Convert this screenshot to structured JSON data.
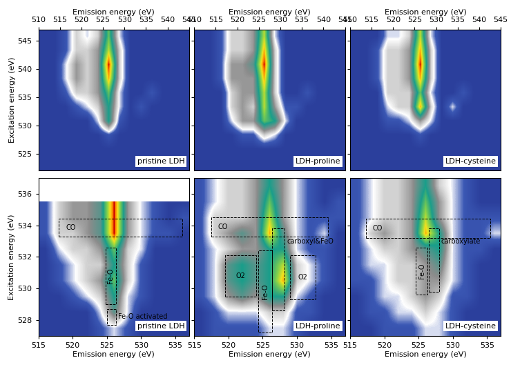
{
  "chart_data": [
    {
      "type": "heatmap",
      "title": "pristine LDH",
      "x_label": "Emission energy (eV)",
      "y_label": "Excitation energy (eV)",
      "xlim": [
        510,
        545
      ],
      "ylim": [
        522,
        547
      ],
      "xticks": [
        510,
        515,
        520,
        525,
        530,
        535,
        540,
        545
      ],
      "yticks": [
        525,
        530,
        535,
        540,
        545
      ],
      "clim": [
        0,
        10
      ],
      "cells": [
        [
          0,
          0,
          0,
          0,
          0,
          0,
          0,
          0,
          0,
          0,
          0,
          0,
          0,
          0
        ],
        [
          0,
          0,
          0,
          0,
          0,
          0,
          0,
          0,
          0,
          0,
          0,
          0,
          0,
          0
        ],
        [
          0,
          0,
          0,
          0,
          0,
          0,
          1,
          0,
          0,
          0,
          0,
          0,
          0,
          0
        ],
        [
          0,
          0,
          0,
          0,
          0,
          2,
          6,
          1,
          0,
          0,
          0,
          0,
          0,
          0
        ],
        [
          0,
          0,
          0,
          1,
          2,
          3,
          6,
          2,
          0,
          1,
          0,
          0,
          0,
          0
        ],
        [
          0,
          0,
          1,
          3,
          3,
          4,
          7,
          2,
          0,
          0,
          1,
          0,
          0,
          0
        ],
        [
          0,
          0,
          2,
          4,
          3,
          4,
          9,
          3,
          0,
          0,
          0,
          0,
          0,
          0
        ],
        [
          0,
          0,
          2,
          4,
          3,
          4,
          10,
          3,
          0,
          0,
          0,
          0,
          0,
          0
        ],
        [
          0,
          0,
          1,
          3,
          3,
          4,
          8,
          3,
          0,
          0,
          0,
          0,
          0,
          0
        ],
        [
          0,
          0,
          1,
          3,
          2,
          3,
          7,
          2,
          0,
          0,
          0,
          0,
          0,
          0
        ]
      ],
      "regions": []
    },
    {
      "type": "heatmap",
      "title": "LDH-proline",
      "x_label": "Emission energy (eV)",
      "xlim": [
        510,
        545
      ],
      "ylim": [
        522,
        547
      ],
      "xticks": [
        510,
        515,
        520,
        525,
        530,
        535,
        540,
        545
      ],
      "yticks": [
        525,
        530,
        535,
        540,
        545
      ],
      "tick_labels": "x",
      "clim": [
        0,
        10
      ],
      "cells": [
        [
          0,
          0,
          0,
          0,
          0,
          0,
          0,
          0,
          0,
          0,
          0,
          0,
          0,
          0
        ],
        [
          0,
          0,
          0,
          0,
          0,
          0,
          0,
          0,
          0,
          0,
          0,
          0,
          0,
          0
        ],
        [
          0,
          0,
          0,
          0,
          1,
          1,
          3,
          2,
          0,
          0,
          0,
          0,
          0,
          0
        ],
        [
          0,
          0,
          0,
          2,
          4,
          4,
          7,
          6,
          2,
          0,
          0,
          0,
          0,
          0
        ],
        [
          0,
          0,
          0,
          3,
          4,
          3,
          8,
          4,
          1,
          1,
          0,
          0,
          0,
          0
        ],
        [
          0,
          0,
          0,
          3,
          4,
          4,
          8,
          3,
          0,
          0,
          1,
          0,
          0,
          0
        ],
        [
          0,
          0,
          1,
          4,
          4,
          4,
          9,
          3,
          0,
          0,
          0,
          0,
          0,
          0
        ],
        [
          0,
          0,
          1,
          4,
          4,
          5,
          10,
          3,
          0,
          0,
          0,
          0,
          0,
          0
        ],
        [
          0,
          0,
          1,
          3,
          3,
          4,
          9,
          3,
          0,
          0,
          0,
          0,
          0,
          0
        ],
        [
          0,
          0,
          1,
          3,
          3,
          4,
          8,
          2,
          0,
          0,
          0,
          0,
          0,
          0
        ]
      ],
      "regions": []
    },
    {
      "type": "heatmap",
      "title": "LDH-cysteine",
      "x_label": "Emission energy (eV)",
      "xlim": [
        510,
        545
      ],
      "ylim": [
        522,
        547
      ],
      "xticks": [
        510,
        515,
        520,
        525,
        530,
        535,
        540,
        545
      ],
      "yticks": [
        525,
        530,
        535,
        540,
        545
      ],
      "tick_labels": "x",
      "clim": [
        0,
        10
      ],
      "cells": [
        [
          0,
          0,
          0,
          0,
          0,
          0,
          0,
          0,
          0,
          0,
          0,
          0,
          0,
          0
        ],
        [
          0,
          0,
          0,
          0,
          0,
          0,
          0,
          0,
          0,
          0,
          0,
          0,
          0,
          0
        ],
        [
          0,
          0,
          0,
          0,
          0,
          0,
          1,
          0,
          0,
          0,
          0,
          0,
          0,
          0
        ],
        [
          0,
          0,
          0,
          1,
          1,
          2,
          4,
          2,
          0,
          0,
          0,
          0,
          0,
          0
        ],
        [
          0,
          0,
          0,
          2,
          3,
          3,
          9,
          3,
          0,
          2,
          0,
          0,
          0,
          0
        ],
        [
          0,
          0,
          0,
          3,
          3,
          3,
          7,
          2,
          0,
          0,
          1,
          0,
          0,
          0
        ],
        [
          0,
          0,
          1,
          3,
          3,
          4,
          9,
          3,
          0,
          0,
          0,
          0,
          0,
          0
        ],
        [
          0,
          0,
          1,
          3,
          3,
          4,
          10,
          3,
          0,
          0,
          0,
          0,
          0,
          0
        ],
        [
          0,
          0,
          1,
          3,
          3,
          4,
          9,
          3,
          0,
          0,
          0,
          0,
          0,
          0
        ],
        [
          0,
          0,
          0,
          2,
          2,
          3,
          8,
          2,
          0,
          0,
          0,
          0,
          0,
          0
        ]
      ],
      "regions": []
    },
    {
      "type": "heatmap",
      "title": "pristine LDH",
      "x_label": "Emission energy (eV)",
      "y_label": "Excitation energy (eV)",
      "xlim": [
        515,
        537
      ],
      "ylim": [
        527,
        537
      ],
      "xticks": [
        515,
        520,
        525,
        530,
        535
      ],
      "yticks": [
        528,
        530,
        532,
        534,
        536
      ],
      "clim": [
        0,
        10
      ],
      "cells": [
        [
          0,
          0,
          0,
          0,
          1,
          2,
          1,
          0,
          0,
          0,
          0
        ],
        [
          0,
          0,
          0,
          0,
          2,
          5,
          2,
          0,
          0,
          0,
          0
        ],
        [
          0,
          0,
          1,
          2,
          3,
          6,
          2,
          1,
          0,
          0,
          0
        ],
        [
          0,
          1,
          2,
          3,
          4,
          7,
          3,
          1,
          0,
          0,
          0
        ],
        [
          0,
          1,
          2,
          3,
          3,
          6,
          3,
          1,
          0,
          0,
          0
        ],
        [
          0,
          2,
          3,
          3,
          4,
          7,
          3,
          2,
          0,
          0,
          0
        ],
        [
          1,
          3,
          3,
          4,
          5,
          10,
          4,
          2,
          1,
          1,
          0
        ],
        [
          1,
          3,
          4,
          4,
          5,
          10,
          4,
          2,
          1,
          0,
          1
        ],
        [
          1,
          3,
          4,
          4,
          5,
          10,
          4,
          2,
          1,
          0,
          0
        ],
        [
          null,
          null,
          null,
          null,
          null,
          null,
          null,
          null,
          null,
          null,
          null
        ]
      ],
      "regions": [
        {
          "label": "CO",
          "x": [
            518,
            536
          ],
          "y": [
            533.3,
            534.4
          ]
        },
        {
          "label": "Fe-O",
          "x": [
            524.8,
            526.3
          ],
          "y": [
            529,
            532.6
          ]
        },
        {
          "label": "Fe-O activated",
          "x": [
            525,
            526.3
          ],
          "y": [
            527.7,
            528.7
          ]
        }
      ]
    },
    {
      "type": "heatmap",
      "title": "LDH-proline",
      "x_label": "Emission energy (eV)",
      "xlim": [
        515,
        537
      ],
      "ylim": [
        527,
        537
      ],
      "xticks": [
        515,
        520,
        525,
        530,
        535
      ],
      "yticks": [
        528,
        530,
        532,
        534,
        536
      ],
      "tick_labels": "x",
      "clim": [
        0,
        10
      ],
      "cells": [
        [
          0,
          1,
          1,
          1,
          1,
          2,
          2,
          1,
          0,
          0,
          0
        ],
        [
          0,
          1,
          2,
          2,
          2,
          3,
          3,
          1,
          1,
          0,
          0
        ],
        [
          1,
          2,
          4,
          5,
          4,
          6,
          6,
          2,
          1,
          0,
          0
        ],
        [
          1,
          2,
          5,
          6,
          5,
          6,
          9,
          3,
          2,
          1,
          0
        ],
        [
          1,
          2,
          5,
          6,
          5,
          6,
          8,
          3,
          2,
          1,
          0
        ],
        [
          1,
          2,
          3,
          4,
          4,
          6,
          6,
          2,
          1,
          1,
          0
        ],
        [
          1,
          3,
          4,
          5,
          4,
          9,
          5,
          2,
          1,
          2,
          0
        ],
        [
          1,
          3,
          3,
          3,
          4,
          8,
          4,
          2,
          1,
          1,
          1
        ],
        [
          1,
          2,
          3,
          3,
          4,
          7,
          4,
          2,
          1,
          0,
          1
        ],
        [
          1,
          2,
          3,
          3,
          4,
          6,
          4,
          2,
          1,
          0,
          0
        ]
      ],
      "regions": [
        {
          "label": "CO",
          "x": [
            517.5,
            534.5
          ],
          "y": [
            533.3,
            534.5
          ]
        },
        {
          "label": "O2",
          "x": [
            519.5,
            524
          ],
          "y": [
            529.5,
            532.1
          ]
        },
        {
          "label": "Fe-O",
          "x": [
            524.4,
            526.4
          ],
          "y": [
            527.2,
            532.4
          ]
        },
        {
          "label": "carboxyl&FeO",
          "x": [
            526.4,
            528.2
          ],
          "y": [
            528.6,
            533.8
          ]
        },
        {
          "label": "O2",
          "x": [
            529,
            532.7
          ],
          "y": [
            529.3,
            532.1
          ]
        }
      ]
    },
    {
      "type": "heatmap",
      "title": "LDH-cysteine",
      "x_label": "Emission energy (eV)",
      "xlim": [
        515,
        537
      ],
      "ylim": [
        527,
        537
      ],
      "xticks": [
        515,
        520,
        525,
        530,
        535
      ],
      "yticks": [
        528,
        530,
        532,
        534,
        536
      ],
      "tick_labels": "x",
      "clim": [
        0,
        10
      ],
      "cells": [
        [
          0,
          0,
          1,
          1,
          1,
          2,
          2,
          1,
          0,
          0,
          0
        ],
        [
          0,
          1,
          1,
          2,
          2,
          3,
          2,
          1,
          0,
          0,
          0
        ],
        [
          0,
          1,
          2,
          2,
          3,
          4,
          3,
          1,
          1,
          0,
          0
        ],
        [
          1,
          1,
          2,
          3,
          3,
          4,
          4,
          2,
          1,
          0,
          0
        ],
        [
          1,
          2,
          2,
          3,
          3,
          4,
          5,
          2,
          1,
          0,
          0
        ],
        [
          1,
          2,
          3,
          3,
          4,
          5,
          6,
          2,
          1,
          1,
          0
        ],
        [
          1,
          3,
          4,
          3,
          4,
          9,
          6,
          2,
          1,
          1,
          2
        ],
        [
          1,
          2,
          3,
          3,
          4,
          8,
          4,
          2,
          1,
          1,
          1
        ],
        [
          1,
          2,
          3,
          3,
          4,
          7,
          4,
          2,
          1,
          0,
          0
        ],
        [
          1,
          2,
          3,
          3,
          4,
          6,
          3,
          2,
          1,
          0,
          0
        ]
      ],
      "regions": [
        {
          "label": "CO",
          "x": [
            517.3,
            535.5
          ],
          "y": [
            533.2,
            534.4
          ]
        },
        {
          "label": "carboxylate",
          "x": [
            526.5,
            528
          ],
          "y": [
            529.8,
            533.8
          ]
        },
        {
          "label": "Fe-O",
          "x": [
            524.6,
            526.3
          ],
          "y": [
            529.6,
            532.6
          ]
        }
      ]
    }
  ]
}
